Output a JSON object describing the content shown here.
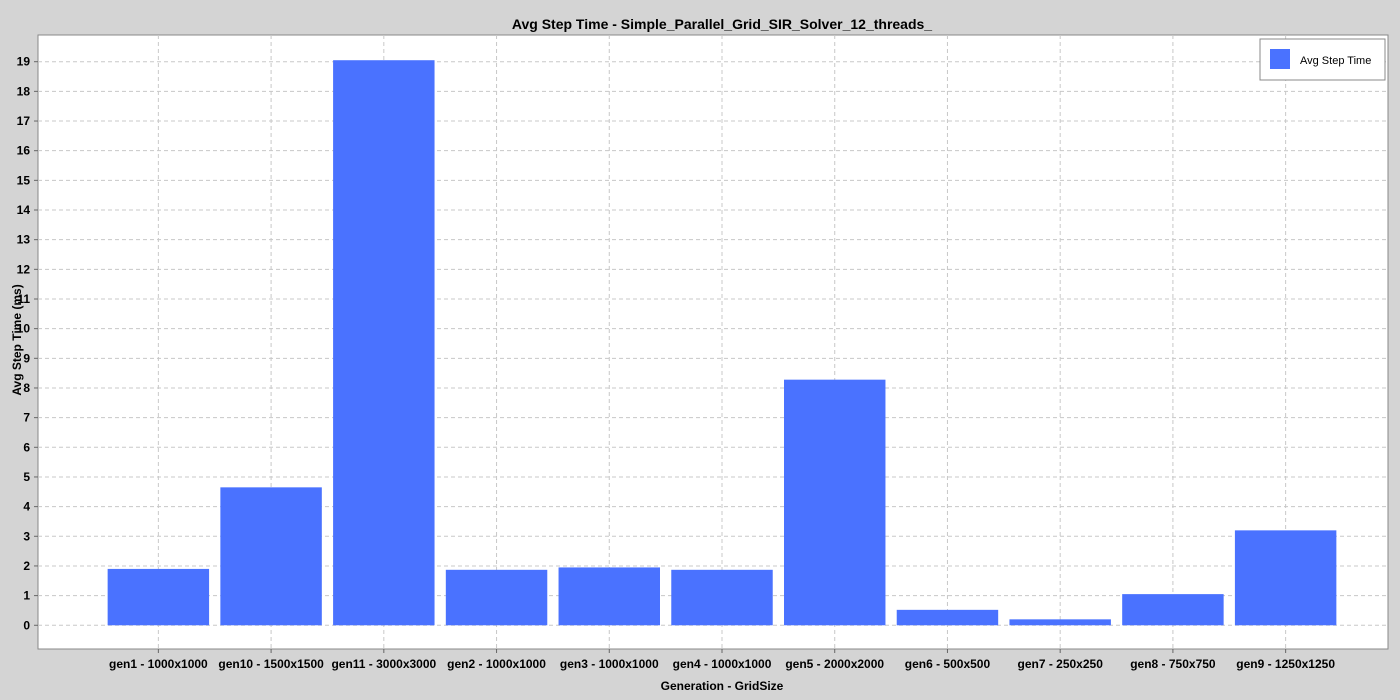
{
  "chart_data": {
    "type": "bar",
    "title": "Avg Step Time - Simple_Parallel_Grid_SIR_Solver_12_threads_",
    "xlabel": "Generation - GridSize",
    "ylabel": "Avg Step Time (ms)",
    "categories": [
      "gen1 - 1000x1000",
      "gen10 - 1500x1500",
      "gen11 - 3000x3000",
      "gen2 - 1000x1000",
      "gen3 - 1000x1000",
      "gen4 - 1000x1000",
      "gen5 - 2000x2000",
      "gen6 - 500x500",
      "gen7 - 250x250",
      "gen8 - 750x750",
      "gen9 - 1250x1250"
    ],
    "series": [
      {
        "name": "Avg Step Time",
        "color": "#4a72ff",
        "values": [
          1.9,
          4.65,
          19.05,
          1.87,
          1.95,
          1.87,
          8.28,
          0.52,
          0.2,
          1.05,
          3.2
        ]
      }
    ],
    "ylim": [
      -0.8,
      19.9
    ],
    "yticks": [
      0,
      1,
      2,
      3,
      4,
      5,
      6,
      7,
      8,
      9,
      10,
      11,
      12,
      13,
      14,
      15,
      16,
      17,
      18,
      19
    ],
    "grid": true,
    "legend": "top-right",
    "colors": {
      "background": "#d4d4d4",
      "plot_background": "#ffffff",
      "gridline": "#c8c8c8",
      "bar": "#4a72ff"
    }
  }
}
